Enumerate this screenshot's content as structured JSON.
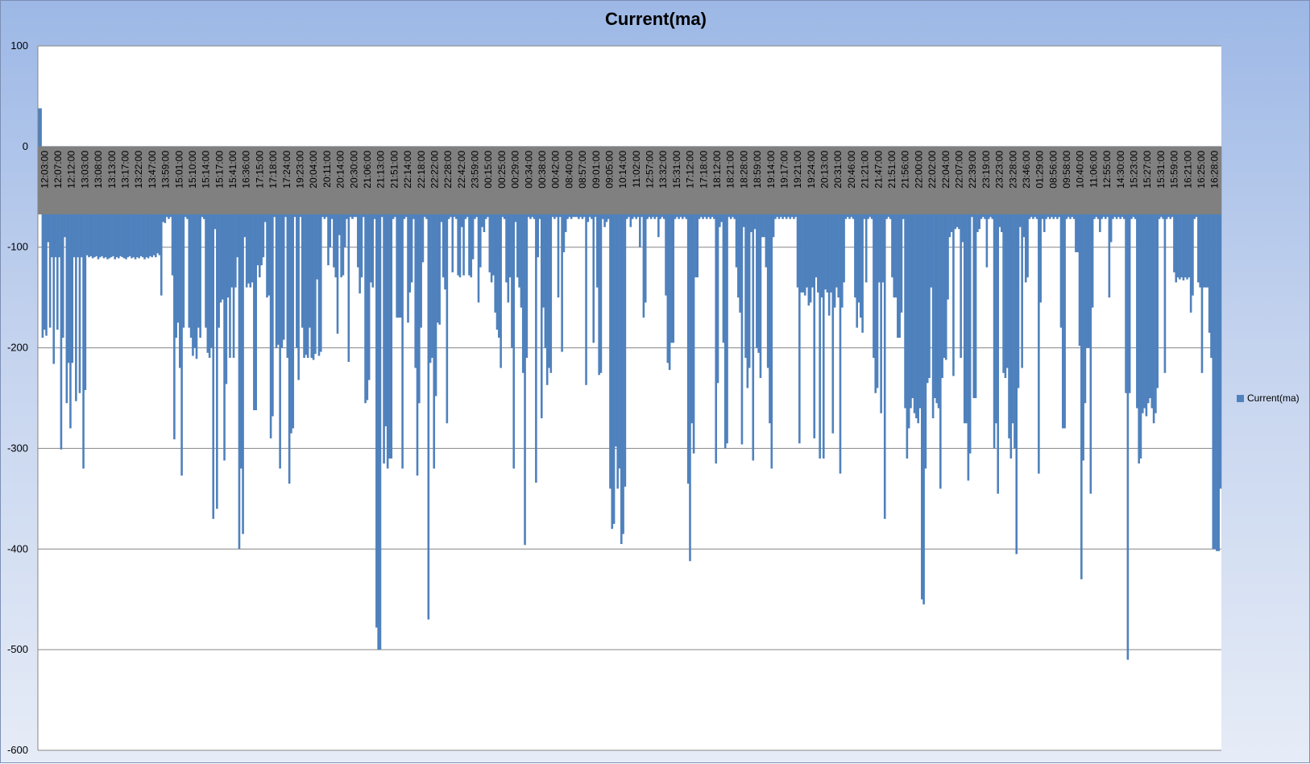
{
  "chart_data": {
    "type": "bar",
    "title": "Current(ma)",
    "xlabel": "",
    "ylabel": "",
    "ylim": [
      -600,
      100
    ],
    "yticks": [
      100,
      0,
      -100,
      -200,
      -300,
      -400,
      -500,
      -600
    ],
    "grid": true,
    "legend_position": "right",
    "category_band_color": "#808080",
    "x_tick_labels": [
      "12:03:00",
      "12:07:00",
      "12:12:00",
      "13:03:00",
      "13:08:00",
      "13:13:00",
      "13:17:00",
      "13:22:00",
      "13:47:00",
      "13:59:00",
      "15:01:00",
      "15:10:00",
      "15:14:00",
      "15:17:00",
      "15:41:00",
      "16:36:00",
      "17:15:00",
      "17:18:00",
      "17:24:00",
      "19:23:00",
      "20:04:00",
      "20:11:00",
      "20:14:00",
      "20:30:00",
      "21:06:00",
      "21:13:00",
      "21:51:00",
      "22:14:00",
      "22:18:00",
      "22:22:00",
      "22:28:00",
      "22:42:00",
      "23:59:00",
      "00:15:00",
      "00:25:00",
      "00:29:00",
      "00:34:00",
      "00:38:00",
      "00:42:00",
      "08:40:00",
      "08:57:00",
      "09:01:00",
      "09:05:00",
      "10:14:00",
      "11:02:00",
      "12:57:00",
      "13:32:00",
      "15:31:00",
      "17:12:00",
      "17:18:00",
      "18:12:00",
      "18:21:00",
      "18:28:00",
      "18:59:00",
      "19:14:00",
      "19:17:00",
      "19:21:00",
      "19:24:00",
      "20:13:00",
      "20:31:00",
      "20:46:00",
      "21:21:00",
      "21:47:00",
      "21:51:00",
      "21:56:00",
      "22:00:00",
      "22:02:00",
      "22:04:00",
      "22:07:00",
      "22:39:00",
      "23:19:00",
      "23:23:00",
      "23:28:00",
      "23:46:00",
      "01:29:00",
      "08:56:00",
      "09:58:00",
      "10:40:00",
      "11:06:00",
      "12:55:00",
      "14:30:00",
      "15:23:00",
      "15:27:00",
      "15:31:00",
      "15:59:00",
      "16:21:00",
      "16:25:00",
      "16:28:00"
    ],
    "series": [
      {
        "name": "Current(ma)",
        "color": "#4f81bd",
        "values": [
          38,
          38,
          -190,
          -182,
          -188,
          -95,
          -180,
          -110,
          -216,
          -110,
          -182,
          -110,
          -301,
          -190,
          -90,
          -255,
          -215,
          -280,
          -215,
          -110,
          -253,
          -110,
          -245,
          -110,
          -320,
          -242,
          -108,
          -110,
          -109,
          -111,
          -110,
          -109,
          -112,
          -110,
          -109,
          -111,
          -110,
          -112,
          -111,
          -110,
          -109,
          -112,
          -110,
          -111,
          -109,
          -110,
          -111,
          -112,
          -110,
          -109,
          -111,
          -110,
          -112,
          -110,
          -111,
          -109,
          -110,
          -112,
          -110,
          -111,
          -109,
          -110,
          -108,
          -110,
          -106,
          -108,
          -148,
          -75,
          -76,
          -70,
          -72,
          -70,
          -128,
          -291,
          -190,
          -175,
          -220,
          -327,
          -180,
          -70,
          -72,
          -180,
          -190,
          -208,
          -200,
          -211,
          -180,
          -190,
          -70,
          -72,
          -180,
          -205,
          -210,
          -200,
          -370,
          -82,
          -360,
          -180,
          -155,
          -152,
          -312,
          -236,
          -150,
          -210,
          -140,
          -210,
          -140,
          -110,
          -400,
          -320,
          -385,
          -90,
          -140,
          -136,
          -140,
          -135,
          -262,
          -262,
          -118,
          -130,
          -118,
          -110,
          -75,
          -150,
          -148,
          -290,
          -268,
          -70,
          -200,
          -197,
          -320,
          -200,
          -192,
          -70,
          -210,
          -335,
          -285,
          -280,
          -70,
          -200,
          -232,
          -70,
          -180,
          -210,
          -207,
          -210,
          -180,
          -210,
          -212,
          -206,
          -132,
          -208,
          -204,
          -70,
          -72,
          -70,
          -118,
          -100,
          -72,
          -120,
          -130,
          -186,
          -88,
          -130,
          -128,
          -100,
          -72,
          -214,
          -70,
          -72,
          -70,
          -70,
          -120,
          -146,
          -130,
          -70,
          -255,
          -252,
          -232,
          -135,
          -140,
          -72,
          -478,
          -500,
          -500,
          -70,
          -315,
          -278,
          -320,
          -310,
          -310,
          -72,
          -70,
          -170,
          -170,
          -170,
          -320,
          -72,
          -70,
          -175,
          -145,
          -135,
          -72,
          -220,
          -327,
          -255,
          -180,
          -115,
          -70,
          -72,
          -470,
          -215,
          -210,
          -320,
          -248,
          -175,
          -177,
          -75,
          -130,
          -142,
          -275,
          -72,
          -70,
          -125,
          -70,
          -72,
          -128,
          -130,
          -80,
          -128,
          -72,
          -70,
          -128,
          -130,
          -112,
          -72,
          -70,
          -155,
          -120,
          -80,
          -85,
          -72,
          -70,
          -125,
          -135,
          -128,
          -165,
          -182,
          -190,
          -220,
          -70,
          -72,
          -135,
          -155,
          -130,
          -200,
          -320,
          -75,
          -130,
          -140,
          -160,
          -225,
          -396,
          -210,
          -70,
          -72,
          -70,
          -72,
          -334,
          -110,
          -72,
          -270,
          -160,
          -200,
          -237,
          -220,
          -225,
          -70,
          -72,
          -70,
          -150,
          -70,
          -204,
          -105,
          -85,
          -72,
          -70,
          -72,
          -70,
          -70,
          -70,
          -72,
          -70,
          -72,
          -70,
          -237,
          -75,
          -70,
          -72,
          -195,
          -70,
          -140,
          -227,
          -225,
          -72,
          -80,
          -75,
          -72,
          -340,
          -380,
          -375,
          -298,
          -340,
          -320,
          -395,
          -385,
          -338,
          -72,
          -70,
          -80,
          -72,
          -70,
          -72,
          -70,
          -100,
          -70,
          -170,
          -155,
          -72,
          -70,
          -72,
          -70,
          -72,
          -70,
          -90,
          -72,
          -70,
          -72,
          -148,
          -215,
          -222,
          -195,
          -195,
          -72,
          -70,
          -72,
          -70,
          -72,
          -70,
          -72,
          -335,
          -412,
          -275,
          -305,
          -130,
          -130,
          -72,
          -70,
          -72,
          -70,
          -72,
          -70,
          -72,
          -70,
          -72,
          -315,
          -235,
          -80,
          -75,
          -195,
          -300,
          -295,
          -70,
          -72,
          -70,
          -72,
          -120,
          -150,
          -165,
          -296,
          -80,
          -210,
          -240,
          -220,
          -85,
          -312,
          -82,
          -200,
          -205,
          -230,
          -90,
          -90,
          -120,
          -220,
          -275,
          -320,
          -90,
          -72,
          -70,
          -72,
          -70,
          -72,
          -70,
          -72,
          -70,
          -72,
          -70,
          -72,
          -70,
          -140,
          -295,
          -145,
          -145,
          -148,
          -140,
          -158,
          -155,
          -140,
          -290,
          -130,
          -145,
          -310,
          -150,
          -310,
          -142,
          -145,
          -168,
          -145,
          -285,
          -160,
          -140,
          -150,
          -325,
          -160,
          -135,
          -72,
          -70,
          -72,
          -70,
          -72,
          -150,
          -180,
          -155,
          -170,
          -185,
          -72,
          -135,
          -72,
          -70,
          -72,
          -210,
          -245,
          -240,
          -135,
          -265,
          -135,
          -370,
          -72,
          -70,
          -72,
          -130,
          -150,
          -150,
          -190,
          -190,
          -165,
          -72,
          -260,
          -310,
          -280,
          -260,
          -250,
          -265,
          -270,
          -275,
          -260,
          -450,
          -455,
          -320,
          -235,
          -230,
          -140,
          -270,
          -250,
          -255,
          -260,
          -340,
          -230,
          -210,
          -212,
          -152,
          -90,
          -85,
          -228,
          -82,
          -80,
          -82,
          -210,
          -95,
          -275,
          -275,
          -332,
          -305,
          -70,
          -250,
          -250,
          -85,
          -82,
          -72,
          -70,
          -72,
          -120,
          -72,
          -70,
          -72,
          -300,
          -275,
          -345,
          -80,
          -85,
          -225,
          -230,
          -220,
          -290,
          -310,
          -275,
          -300,
          -405,
          -240,
          -80,
          -220,
          -90,
          -135,
          -130,
          -72,
          -70,
          -72,
          -70,
          -72,
          -325,
          -155,
          -72,
          -85,
          -72,
          -70,
          -72,
          -70,
          -72,
          -70,
          -72,
          -70,
          -180,
          -280,
          -280,
          -72,
          -70,
          -72,
          -70,
          -72,
          -105,
          -105,
          -198,
          -430,
          -312,
          -255,
          -200,
          -200,
          -345,
          -160,
          -72,
          -70,
          -72,
          -85,
          -72,
          -70,
          -72,
          -70,
          -150,
          -95,
          -72,
          -70,
          -72,
          -70,
          -72,
          -70,
          -72,
          -245,
          -510,
          -245,
          -72,
          -70,
          -72,
          -260,
          -315,
          -310,
          -265,
          -260,
          -268,
          -255,
          -250,
          -260,
          -275,
          -265,
          -240,
          -72,
          -70,
          -72,
          -225,
          -72,
          -70,
          -72,
          -70,
          -125,
          -135,
          -130,
          -132,
          -130,
          -133,
          -130,
          -132,
          -130,
          -165,
          -148,
          -72,
          -70,
          -135,
          -140,
          -225,
          -140,
          -140,
          -140,
          -185,
          -210,
          -400,
          -400,
          -402,
          -402,
          -340
        ]
      }
    ]
  }
}
